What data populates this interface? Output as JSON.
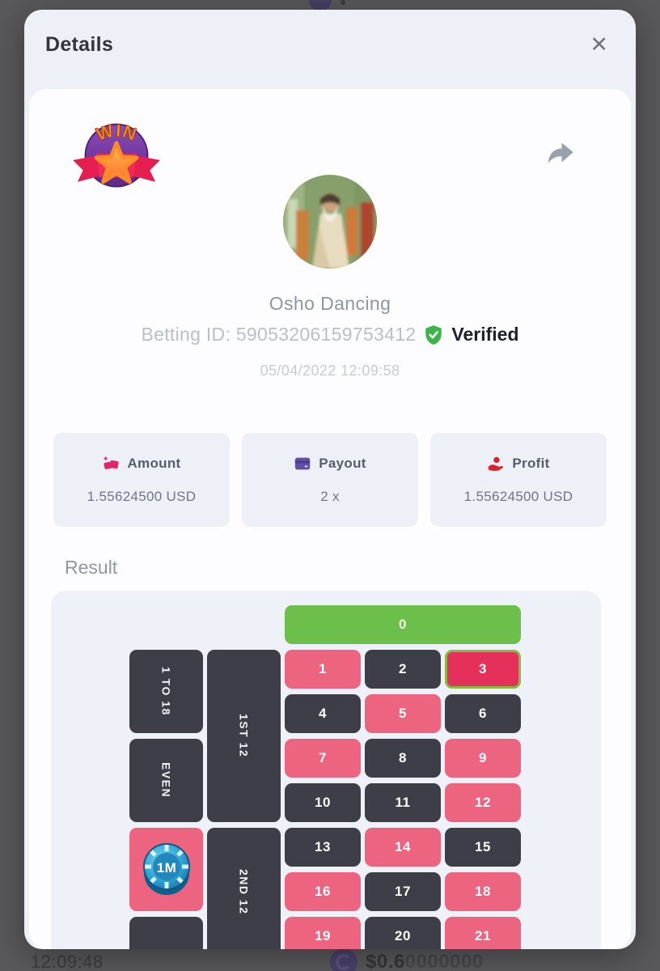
{
  "behind_page": {
    "time": "12:09:48",
    "balance_bold": "$0.6",
    "balance_rest": "0000000",
    "coin_icon": "coin-icon"
  },
  "modal": {
    "title": "Details",
    "close_icon": "✕"
  },
  "result_card": {
    "outcome_badge": "WIN",
    "player_name": "Osho Dancing",
    "betting_id_line": "Betting ID: 59053206159753412",
    "verified_label": "Verified",
    "datetime": "05/04/2022 12:09:58",
    "stats": [
      {
        "label": "Amount",
        "value": "1.55624500 USD",
        "icon": "coins-icon",
        "icon_color": "#e5246d"
      },
      {
        "label": "Payout",
        "value": "2 x",
        "icon": "card-icon",
        "icon_color": "#6150a8"
      },
      {
        "label": "Profit",
        "value": "1.55624500 USD",
        "icon": "hand-coin-icon",
        "icon_color": "#d8232a"
      }
    ],
    "result_label": "Result"
  },
  "board": {
    "zero": {
      "label": "0",
      "color": "green"
    },
    "winner": 3,
    "numbers": [
      {
        "n": 1,
        "color": "red"
      },
      {
        "n": 2,
        "color": "dark"
      },
      {
        "n": 3,
        "color": "red"
      },
      {
        "n": 4,
        "color": "dark"
      },
      {
        "n": 5,
        "color": "red"
      },
      {
        "n": 6,
        "color": "dark"
      },
      {
        "n": 7,
        "color": "red"
      },
      {
        "n": 8,
        "color": "dark"
      },
      {
        "n": 9,
        "color": "red"
      },
      {
        "n": 10,
        "color": "dark"
      },
      {
        "n": 11,
        "color": "dark"
      },
      {
        "n": 12,
        "color": "red"
      },
      {
        "n": 13,
        "color": "dark"
      },
      {
        "n": 14,
        "color": "red"
      },
      {
        "n": 15,
        "color": "dark"
      },
      {
        "n": 16,
        "color": "red"
      },
      {
        "n": 17,
        "color": "dark"
      },
      {
        "n": 18,
        "color": "red"
      },
      {
        "n": 19,
        "color": "red"
      },
      {
        "n": 20,
        "color": "dark"
      },
      {
        "n": 21,
        "color": "red"
      }
    ],
    "side_bets": {
      "one_to_18": "1 TO 18",
      "even": "EVEN",
      "first_12": "1ST 12",
      "second_12": "2ND 12"
    },
    "chip": {
      "label": "1M",
      "placed_on": "red-bet"
    }
  },
  "colors": {
    "dark": "#3e3e48",
    "red": "#ed6480",
    "green": "#6cbf4a",
    "winner_red": "#e5305b",
    "winner_border": "#86bb40",
    "accent_pink": "#e5246d",
    "accent_purple": "#6150a8",
    "accent_red": "#d8232a",
    "verified_green": "#3bb54a"
  }
}
